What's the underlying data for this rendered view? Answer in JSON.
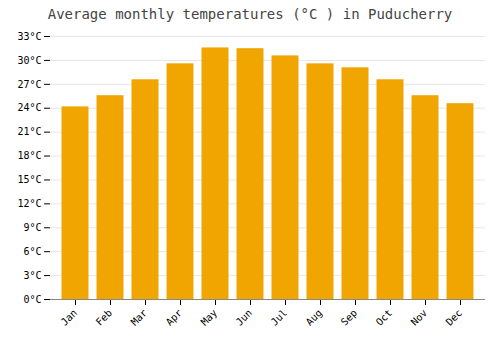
{
  "chart_data": {
    "type": "bar",
    "title": "Average monthly temperatures (°C ) in Puducherry",
    "categories": [
      "Jan",
      "Feb",
      "Mar",
      "Apr",
      "May",
      "Jun",
      "Jul",
      "Aug",
      "Sep",
      "Oct",
      "Nov",
      "Dec"
    ],
    "values": [
      24.1,
      25.5,
      27.5,
      29.5,
      31.5,
      31.4,
      30.5,
      29.5,
      29.0,
      27.5,
      25.5,
      24.5
    ],
    "color": "#F0A500",
    "ylim": [
      0,
      33
    ],
    "yticks": [
      {
        "value": 0,
        "label": "0°C"
      },
      {
        "value": 3,
        "label": "3°C"
      },
      {
        "value": 6,
        "label": "6°C"
      },
      {
        "value": 9,
        "label": "9°C"
      },
      {
        "value": 12,
        "label": "12°C"
      },
      {
        "value": 15,
        "label": "15°C"
      },
      {
        "value": 18,
        "label": "18°C"
      },
      {
        "value": 21,
        "label": "21°C"
      },
      {
        "value": 24,
        "label": "24°C"
      },
      {
        "value": 27,
        "label": "27°C"
      },
      {
        "value": 30,
        "label": "30°C"
      },
      {
        "value": 33,
        "label": "33°C"
      }
    ],
    "grid": true
  }
}
